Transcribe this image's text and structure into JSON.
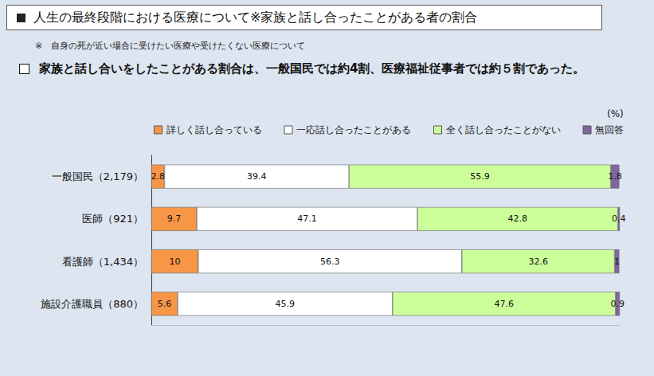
{
  "chart_data": {
    "type": "bar",
    "title": "人生の最終段階における医療について※家族と話し合ったことがある者の割合",
    "subtitle": "家族と話し合いをしたことがある割合は、一般国民では約4割、医療福祉従事者では約５割であった。",
    "annotations": [
      "※　自身の死が近い場合に受けたい医療や受けたくない医療について",
      "(%)"
    ],
    "categories": [
      "一般国民（2,179）",
      "医師（921）",
      "看護師（1,434）",
      "施設介護職員（880）"
    ],
    "series": [
      {
        "name": "詳しく話し合っている",
        "color": "#f79646",
        "values": [
          2.8,
          9.7,
          10,
          5.6
        ]
      },
      {
        "name": "一応話し合ったことがある",
        "color": "#ffffff",
        "values": [
          39.4,
          47.1,
          56.3,
          45.9
        ]
      },
      {
        "name": "全く話し合ったことがない",
        "color": "#ccff99",
        "values": [
          55.9,
          42.8,
          32.6,
          47.6
        ]
      },
      {
        "name": "無回答",
        "color": "#8064a2",
        "values": [
          1.8,
          0.4,
          1,
          0.9
        ]
      }
    ],
    "xlim": [
      0,
      100
    ],
    "orientation": "horizontal",
    "stacked": true,
    "data_labels": true,
    "legend": "top",
    "grid": false,
    "tick_labels": "y"
  }
}
